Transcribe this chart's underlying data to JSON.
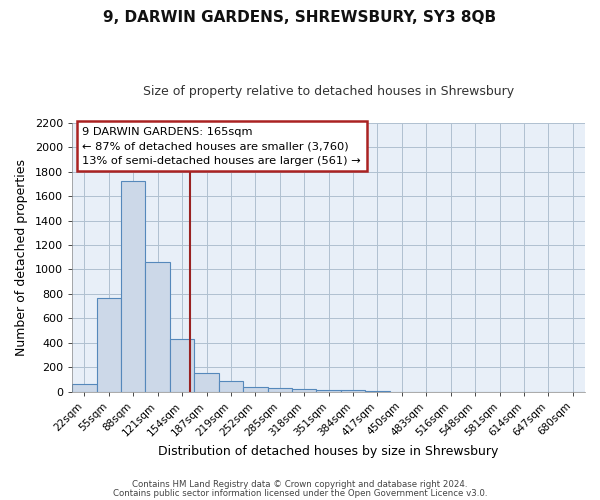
{
  "title": "9, DARWIN GARDENS, SHREWSBURY, SY3 8QB",
  "subtitle": "Size of property relative to detached houses in Shrewsbury",
  "xlabel": "Distribution of detached houses by size in Shrewsbury",
  "ylabel": "Number of detached properties",
  "bar_labels": [
    "22sqm",
    "55sqm",
    "88sqm",
    "121sqm",
    "154sqm",
    "187sqm",
    "219sqm",
    "252sqm",
    "285sqm",
    "318sqm",
    "351sqm",
    "384sqm",
    "417sqm",
    "450sqm",
    "483sqm",
    "516sqm",
    "548sqm",
    "581sqm",
    "614sqm",
    "647sqm",
    "680sqm"
  ],
  "bar_values": [
    60,
    770,
    1720,
    1060,
    430,
    150,
    85,
    42,
    28,
    20,
    15,
    10,
    8,
    0,
    0,
    0,
    0,
    0,
    0,
    0,
    0
  ],
  "bar_color": "#ccd8e8",
  "bar_edge_color": "#5588bb",
  "vline_color": "#992222",
  "annotation_title": "9 DARWIN GARDENS: 165sqm",
  "annotation_line1": "← 87% of detached houses are smaller (3,760)",
  "annotation_line2": "13% of semi-detached houses are larger (561) →",
  "annotation_box_edge_color": "#aa2222",
  "ylim": [
    0,
    2200
  ],
  "yticks": [
    0,
    200,
    400,
    600,
    800,
    1000,
    1200,
    1400,
    1600,
    1800,
    2000,
    2200
  ],
  "grid_color": "#b0c0d0",
  "background_color": "#e8eff8",
  "fig_background": "#ffffff",
  "footer1": "Contains HM Land Registry data © Crown copyright and database right 2024.",
  "footer2": "Contains public sector information licensed under the Open Government Licence v3.0."
}
